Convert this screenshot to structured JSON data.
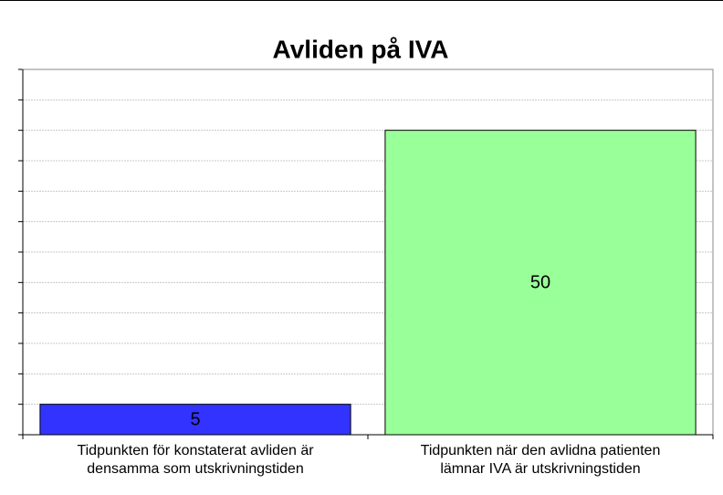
{
  "chart_data": {
    "type": "bar",
    "title": "Avliden på IVA",
    "categories": [
      "Tidpunkten för konstaterat avliden är\ndensamma som utskrivningstiden",
      "Tidpunkten när den avlidna patienten\nlämnar IVA är utskrivningstiden"
    ],
    "series": [
      {
        "colors": [
          "#3333ff",
          "#99ff99"
        ],
        "values": [
          5,
          50
        ]
      }
    ],
    "ylim": [
      0,
      60
    ],
    "yticks": [
      0,
      5,
      10,
      15,
      20,
      25,
      30,
      35,
      40,
      45,
      50,
      55,
      60
    ],
    "grid": true
  }
}
